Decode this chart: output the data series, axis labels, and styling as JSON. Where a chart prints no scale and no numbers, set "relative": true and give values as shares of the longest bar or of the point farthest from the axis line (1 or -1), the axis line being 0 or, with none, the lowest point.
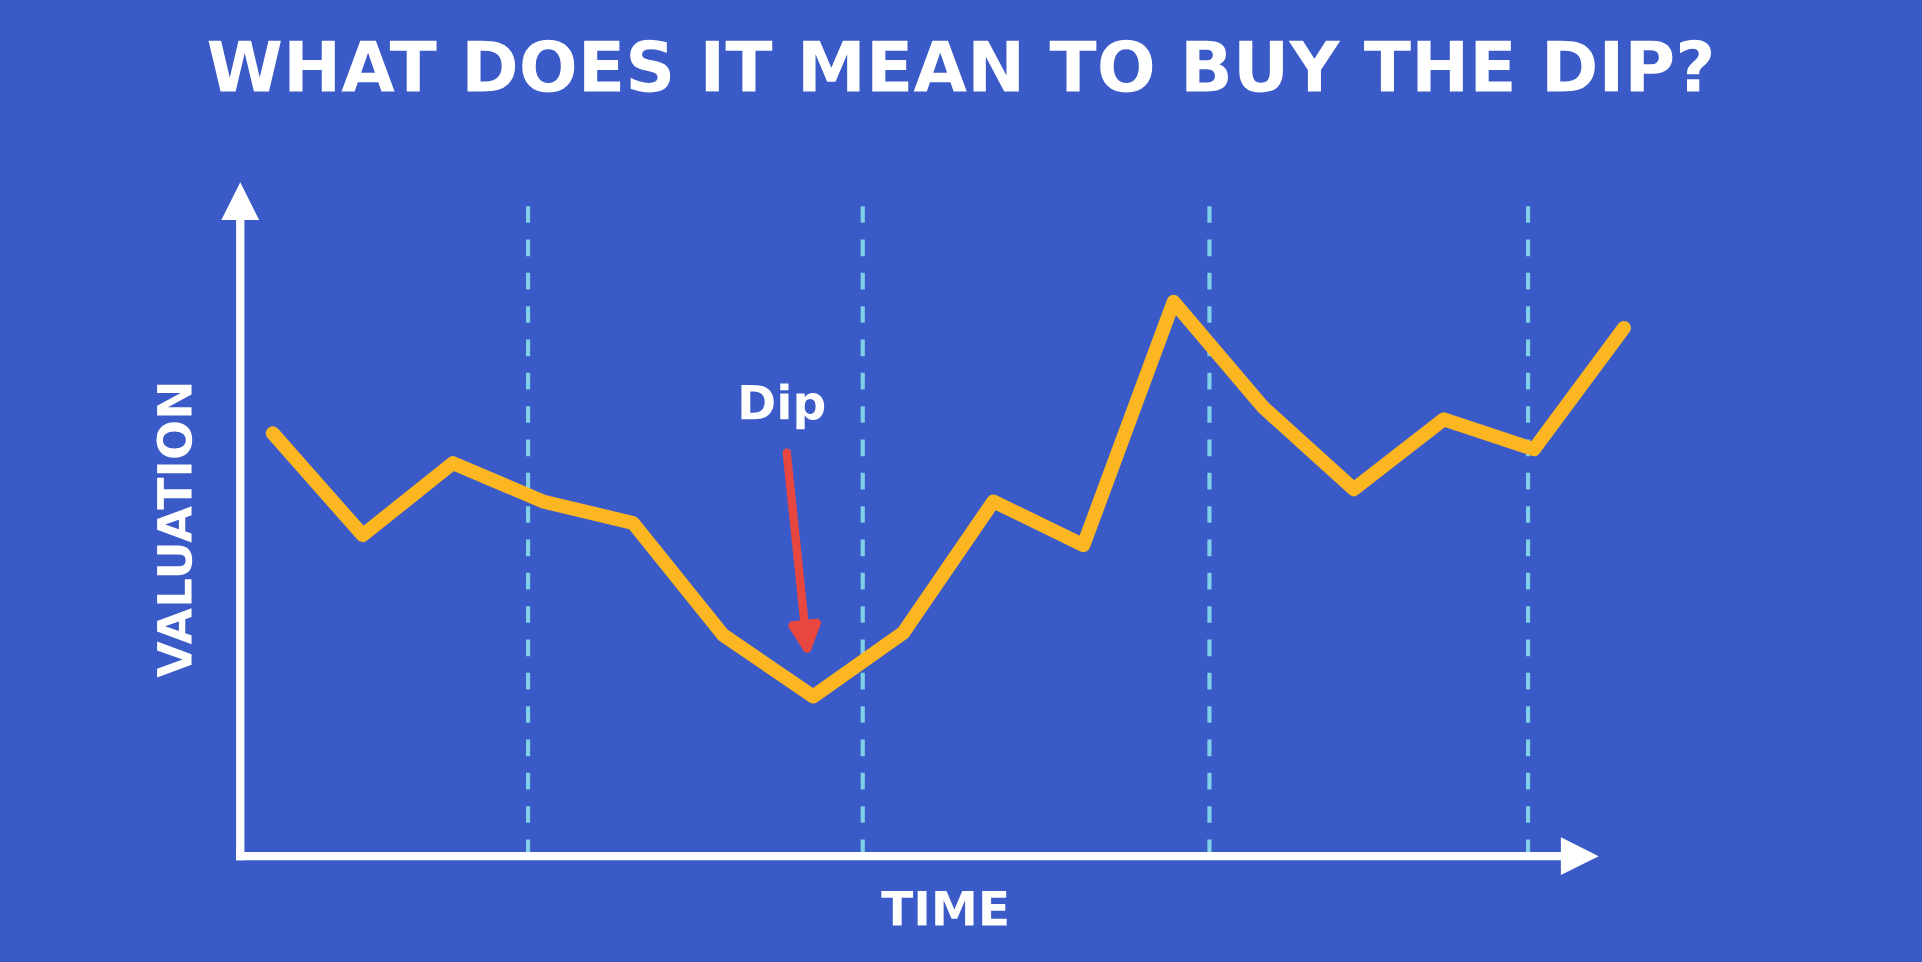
{
  "chart_data": {
    "type": "line",
    "title": "WHAT DOES IT MEAN TO BUY THE DIP?",
    "xlabel": "TIME",
    "ylabel": "VALUATION",
    "relative": true,
    "categories": [
      null,
      null,
      null,
      null,
      null,
      null,
      null,
      null,
      null,
      null,
      null,
      null,
      null,
      null,
      null,
      null
    ],
    "series": [
      {
        "color": "#fbb622",
        "values": [
          0.763,
          0.579,
          0.709,
          0.64,
          0.601,
          0.399,
          0.288,
          0.403,
          0.64,
          0.561,
          1,
          0.809,
          0.662,
          0.788,
          0.734,
          0.953
        ]
      }
    ],
    "annotations": [
      "Dip"
    ],
    "legend": false,
    "marker": "none",
    "line_style": "solid"
  }
}
